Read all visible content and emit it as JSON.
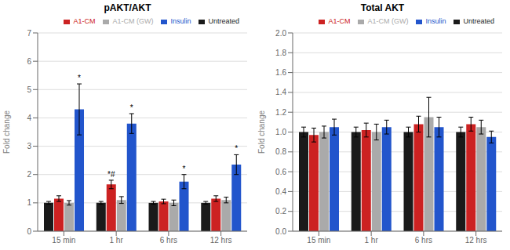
{
  "chart_data": [
    {
      "type": "bar",
      "title": "pAKT/AKT",
      "ylabel": "Fold change",
      "categories": [
        "15 min",
        "1 hr",
        "6 hrs",
        "12 hrs"
      ],
      "series": [
        {
          "name": "Untreated",
          "color": "#1a1a1a",
          "values": [
            1.0,
            1.0,
            1.0,
            1.0
          ],
          "errors": [
            0.05,
            0.05,
            0.05,
            0.05
          ]
        },
        {
          "name": "A1-CM",
          "color": "#cc2222",
          "values": [
            1.15,
            1.65,
            1.05,
            1.15
          ],
          "errors": [
            0.1,
            0.15,
            0.08,
            0.1
          ]
        },
        {
          "name": "A1-CM (GW)",
          "color": "#aaaaaa",
          "values": [
            1.0,
            1.1,
            1.0,
            1.1
          ],
          "errors": [
            0.08,
            0.12,
            0.1,
            0.1
          ]
        },
        {
          "name": "Insulin",
          "color": "#2255cc",
          "values": [
            4.3,
            3.8,
            1.75,
            2.35
          ],
          "errors": [
            0.9,
            0.35,
            0.25,
            0.35
          ]
        }
      ],
      "annotations": [
        {
          "category": "15 min",
          "series": "Insulin",
          "text": "*"
        },
        {
          "category": "1 hr",
          "series": "A1-CM",
          "text": "*#"
        },
        {
          "category": "1 hr",
          "series": "Insulin",
          "text": "*"
        },
        {
          "category": "6 hrs",
          "series": "Insulin",
          "text": "*"
        },
        {
          "category": "12 hrs",
          "series": "Insulin",
          "text": "*"
        }
      ],
      "ylim": [
        0,
        7
      ],
      "yticks": [
        0,
        1,
        2,
        3,
        4,
        5,
        6,
        7
      ],
      "grid": true,
      "legend": "upper right"
    },
    {
      "type": "bar",
      "title": "Total AKT",
      "ylabel": "Fold change",
      "categories": [
        "15 min",
        "1 hr",
        "6 hrs",
        "12 hrs"
      ],
      "series": [
        {
          "name": "Untreated",
          "color": "#1a1a1a",
          "values": [
            1.0,
            1.0,
            1.0,
            1.0
          ],
          "errors": [
            0.05,
            0.05,
            0.05,
            0.05
          ]
        },
        {
          "name": "A1-CM",
          "color": "#cc2222",
          "values": [
            0.97,
            1.02,
            1.08,
            1.08
          ],
          "errors": [
            0.07,
            0.07,
            0.08,
            0.07
          ]
        },
        {
          "name": "A1-CM (GW)",
          "color": "#aaaaaa",
          "values": [
            1.0,
            1.0,
            1.15,
            1.05
          ],
          "errors": [
            0.06,
            0.08,
            0.2,
            0.07
          ]
        },
        {
          "name": "Insulin",
          "color": "#2255cc",
          "values": [
            1.05,
            1.05,
            1.05,
            0.95
          ],
          "errors": [
            0.08,
            0.07,
            0.1,
            0.06
          ]
        }
      ],
      "ylim": [
        0,
        2
      ],
      "yticks": [
        {
          "value": 0,
          "label": "0.0"
        },
        0.2,
        0.4,
        0.6,
        0.8,
        {
          "value": 1.0,
          "label": "1.0"
        },
        1.2,
        1.4,
        1.6,
        1.8,
        {
          "value": 2.0,
          "label": "2.0"
        }
      ],
      "grid": true,
      "legend": "upper right"
    }
  ]
}
